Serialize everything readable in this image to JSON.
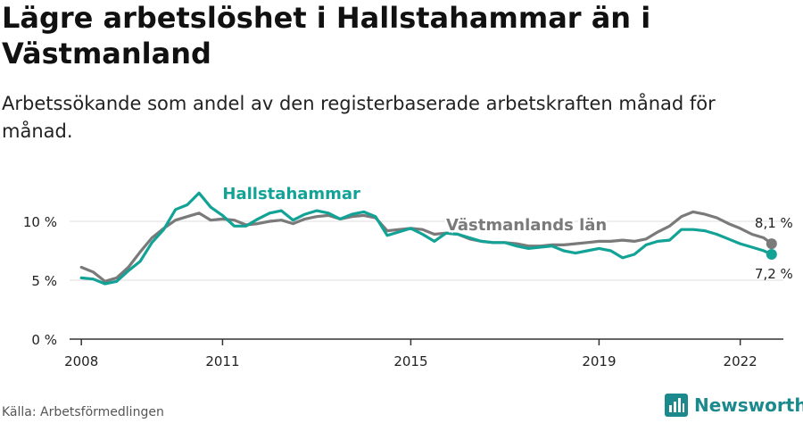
{
  "title": "Lägre arbetslöshet i Hallstahammar än i Västmanland",
  "subtitle": "Arbetssökande som andel av den registerbaserade arbetskraften månad för månad.",
  "source": "Källa: Arbetsförmedlingen",
  "brand": "Newsworthy",
  "icons": {
    "brand_logo": "bar-chart-logo-icon"
  },
  "colors": {
    "hallstahammar": "#12a396",
    "vastmanland": "#7a7a7a",
    "grid": "#dddddd",
    "axis": "#333333",
    "brand": "#1c8a8d"
  },
  "chart_data": {
    "type": "line",
    "ylim": [
      0,
      12.5
    ],
    "xlim": [
      "2007-10",
      "2022-12"
    ],
    "y_ticks": [
      0,
      5,
      10
    ],
    "y_tick_labels": [
      "0 %",
      "5 %",
      "10 %"
    ],
    "x_ticks": [
      "2008-01",
      "2011-01",
      "2015-01",
      "2019-01",
      "2022-01"
    ],
    "x_tick_labels": [
      "2008",
      "2011",
      "2015",
      "2019",
      "2022"
    ],
    "grid": true,
    "series": [
      {
        "name": "Västmanlands län",
        "end_label": "8,1 %",
        "points": [
          [
            "2008-01",
            6.1
          ],
          [
            "2008-04",
            5.7
          ],
          [
            "2008-07",
            4.9
          ],
          [
            "2008-10",
            5.2
          ],
          [
            "2009-01",
            6.1
          ],
          [
            "2009-04",
            7.4
          ],
          [
            "2009-07",
            8.6
          ],
          [
            "2009-10",
            9.4
          ],
          [
            "2010-01",
            10.1
          ],
          [
            "2010-04",
            10.4
          ],
          [
            "2010-07",
            10.7
          ],
          [
            "2010-10",
            10.1
          ],
          [
            "2011-01",
            10.2
          ],
          [
            "2011-04",
            10.1
          ],
          [
            "2011-07",
            9.7
          ],
          [
            "2011-10",
            9.8
          ],
          [
            "2012-01",
            10.0
          ],
          [
            "2012-04",
            10.1
          ],
          [
            "2012-07",
            9.8
          ],
          [
            "2012-10",
            10.2
          ],
          [
            "2013-01",
            10.4
          ],
          [
            "2013-04",
            10.5
          ],
          [
            "2013-07",
            10.2
          ],
          [
            "2013-10",
            10.4
          ],
          [
            "2014-01",
            10.5
          ],
          [
            "2014-04",
            10.3
          ],
          [
            "2014-07",
            9.2
          ],
          [
            "2014-10",
            9.3
          ],
          [
            "2015-01",
            9.4
          ],
          [
            "2015-04",
            9.3
          ],
          [
            "2015-07",
            8.9
          ],
          [
            "2015-10",
            9.0
          ],
          [
            "2016-01",
            8.9
          ],
          [
            "2016-04",
            8.5
          ],
          [
            "2016-07",
            8.3
          ],
          [
            "2016-10",
            8.2
          ],
          [
            "2017-01",
            8.2
          ],
          [
            "2017-04",
            8.1
          ],
          [
            "2017-07",
            7.9
          ],
          [
            "2017-10",
            7.9
          ],
          [
            "2018-01",
            8.0
          ],
          [
            "2018-04",
            8.0
          ],
          [
            "2018-07",
            8.1
          ],
          [
            "2018-10",
            8.2
          ],
          [
            "2019-01",
            8.3
          ],
          [
            "2019-04",
            8.3
          ],
          [
            "2019-07",
            8.4
          ],
          [
            "2019-10",
            8.3
          ],
          [
            "2020-01",
            8.5
          ],
          [
            "2020-04",
            9.1
          ],
          [
            "2020-07",
            9.6
          ],
          [
            "2020-10",
            10.4
          ],
          [
            "2021-01",
            10.8
          ],
          [
            "2021-04",
            10.6
          ],
          [
            "2021-07",
            10.3
          ],
          [
            "2021-10",
            9.8
          ],
          [
            "2022-01",
            9.4
          ],
          [
            "2022-04",
            8.9
          ],
          [
            "2022-07",
            8.6
          ],
          [
            "2022-09",
            8.1
          ]
        ]
      },
      {
        "name": "Hallstahammar",
        "end_label": "7,2 %",
        "points": [
          [
            "2008-01",
            5.2
          ],
          [
            "2008-04",
            5.1
          ],
          [
            "2008-07",
            4.7
          ],
          [
            "2008-10",
            4.9
          ],
          [
            "2009-01",
            5.8
          ],
          [
            "2009-04",
            6.6
          ],
          [
            "2009-07",
            8.2
          ],
          [
            "2009-10",
            9.3
          ],
          [
            "2010-01",
            11.0
          ],
          [
            "2010-04",
            11.4
          ],
          [
            "2010-07",
            12.4
          ],
          [
            "2010-10",
            11.2
          ],
          [
            "2011-01",
            10.5
          ],
          [
            "2011-04",
            9.6
          ],
          [
            "2011-07",
            9.6
          ],
          [
            "2011-10",
            10.2
          ],
          [
            "2012-01",
            10.7
          ],
          [
            "2012-04",
            10.9
          ],
          [
            "2012-07",
            10.1
          ],
          [
            "2012-10",
            10.6
          ],
          [
            "2013-01",
            10.9
          ],
          [
            "2013-04",
            10.7
          ],
          [
            "2013-07",
            10.2
          ],
          [
            "2013-10",
            10.6
          ],
          [
            "2014-01",
            10.8
          ],
          [
            "2014-04",
            10.4
          ],
          [
            "2014-07",
            8.8
          ],
          [
            "2014-10",
            9.1
          ],
          [
            "2015-01",
            9.4
          ],
          [
            "2015-04",
            8.9
          ],
          [
            "2015-07",
            8.3
          ],
          [
            "2015-10",
            9.0
          ],
          [
            "2016-01",
            8.9
          ],
          [
            "2016-04",
            8.6
          ],
          [
            "2016-07",
            8.3
          ],
          [
            "2016-10",
            8.2
          ],
          [
            "2017-01",
            8.2
          ],
          [
            "2017-04",
            7.9
          ],
          [
            "2017-07",
            7.7
          ],
          [
            "2017-10",
            7.8
          ],
          [
            "2018-01",
            7.9
          ],
          [
            "2018-04",
            7.5
          ],
          [
            "2018-07",
            7.3
          ],
          [
            "2018-10",
            7.5
          ],
          [
            "2019-01",
            7.7
          ],
          [
            "2019-04",
            7.5
          ],
          [
            "2019-07",
            6.9
          ],
          [
            "2019-10",
            7.2
          ],
          [
            "2020-01",
            8.0
          ],
          [
            "2020-04",
            8.3
          ],
          [
            "2020-07",
            8.4
          ],
          [
            "2020-10",
            9.3
          ],
          [
            "2021-01",
            9.3
          ],
          [
            "2021-04",
            9.2
          ],
          [
            "2021-07",
            8.9
          ],
          [
            "2021-10",
            8.5
          ],
          [
            "2022-01",
            8.1
          ],
          [
            "2022-04",
            7.8
          ],
          [
            "2022-07",
            7.5
          ],
          [
            "2022-09",
            7.2
          ]
        ]
      }
    ]
  }
}
